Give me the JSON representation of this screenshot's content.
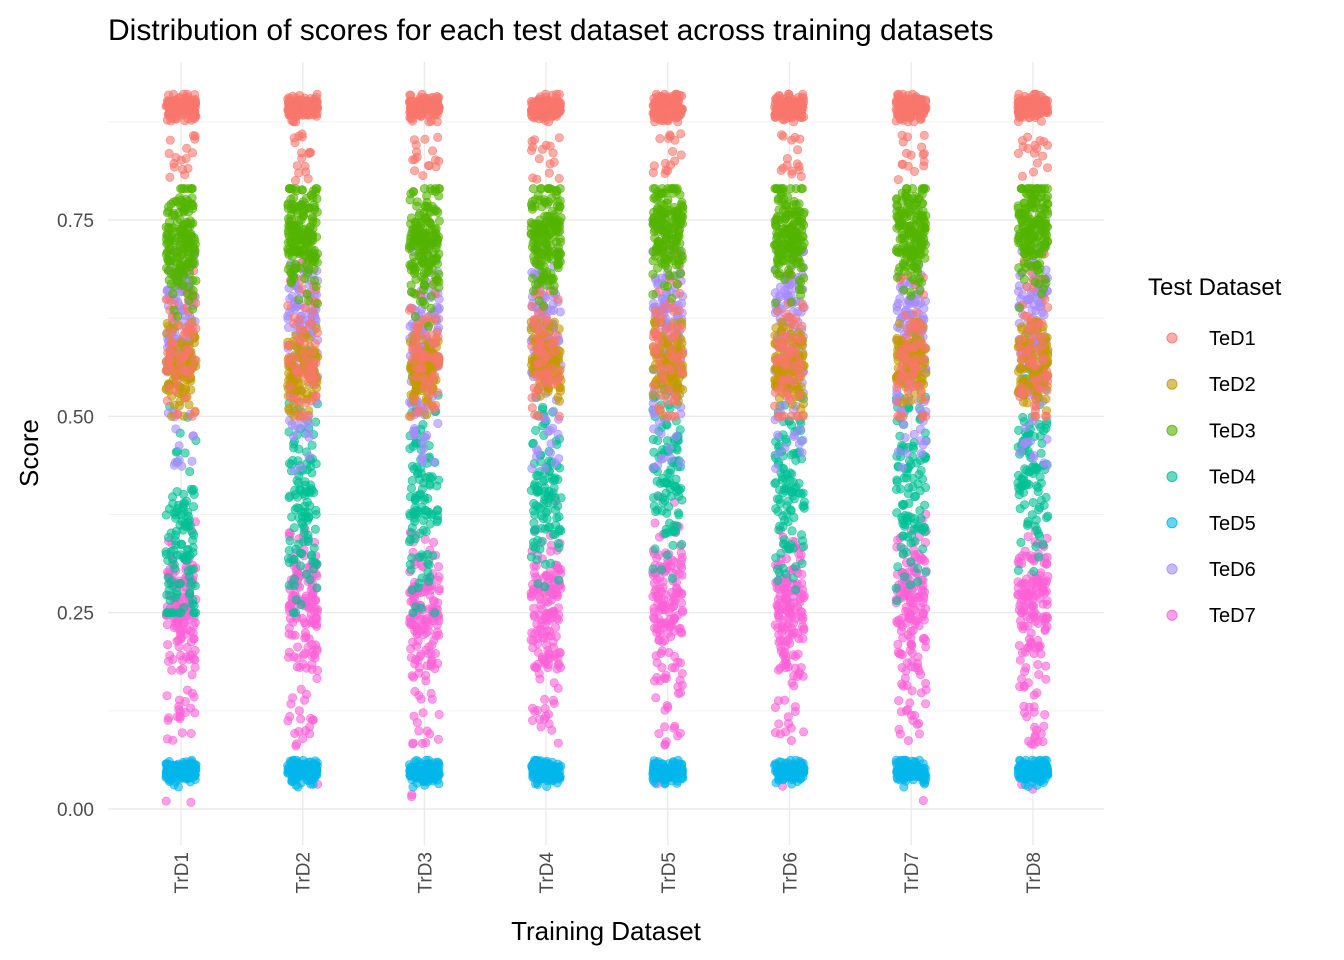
{
  "chart_data": {
    "type": "scatter",
    "title": "Distribution of scores for each test dataset across training datasets",
    "xlabel": "Training Dataset",
    "ylabel": "Score",
    "categories": [
      "TrD1",
      "TrD2",
      "TrD3",
      "TrD4",
      "TrD5",
      "TrD6",
      "TrD7",
      "TrD8"
    ],
    "ylim": [
      -0.04,
      0.94
    ],
    "yticks": [
      0.0,
      0.25,
      0.5,
      0.75
    ],
    "ytick_labels": [
      "0.00",
      "0.25",
      "0.50",
      "0.75"
    ],
    "grid": true,
    "jitter": true,
    "point_alpha": 0.6,
    "legend": {
      "title": "Test Dataset",
      "placement": "right"
    },
    "series": [
      {
        "name": "TeD1",
        "color": "#F8766D",
        "median_by_category": [
          0.89,
          0.89,
          0.89,
          0.89,
          0.89,
          0.89,
          0.89,
          0.89
        ],
        "secondary_cluster": [
          0.58,
          0.58,
          0.58,
          0.58,
          0.58,
          0.58,
          0.58,
          0.58
        ],
        "range": [
          0.5,
          0.91
        ]
      },
      {
        "name": "TeD2",
        "color": "#C49A00",
        "median_by_category": [
          0.56,
          0.56,
          0.56,
          0.57,
          0.57,
          0.56,
          0.57,
          0.57
        ],
        "range": [
          0.5,
          0.62
        ]
      },
      {
        "name": "TeD3",
        "color": "#53B400",
        "median_by_category": [
          0.72,
          0.73,
          0.72,
          0.73,
          0.74,
          0.73,
          0.73,
          0.74
        ],
        "range": [
          0.55,
          0.79
        ]
      },
      {
        "name": "TeD4",
        "color": "#00C094",
        "median_by_category": [
          0.34,
          0.38,
          0.4,
          0.4,
          0.42,
          0.4,
          0.4,
          0.44
        ],
        "range": [
          0.25,
          0.56
        ]
      },
      {
        "name": "TeD5",
        "color": "#00B6EB",
        "median_by_category": [
          0.05,
          0.05,
          0.05,
          0.05,
          0.05,
          0.05,
          0.05,
          0.05
        ],
        "range": [
          0.03,
          0.06
        ]
      },
      {
        "name": "TeD6",
        "color": "#A58AFF",
        "median_by_category": [
          0.62,
          0.61,
          0.6,
          0.61,
          0.62,
          0.62,
          0.61,
          0.62
        ],
        "range": [
          0.43,
          0.71
        ]
      },
      {
        "name": "TeD7",
        "color": "#FB61D7",
        "median_by_category": [
          0.26,
          0.27,
          0.26,
          0.26,
          0.27,
          0.26,
          0.27,
          0.27
        ],
        "range": [
          0.0,
          0.4
        ]
      }
    ]
  }
}
